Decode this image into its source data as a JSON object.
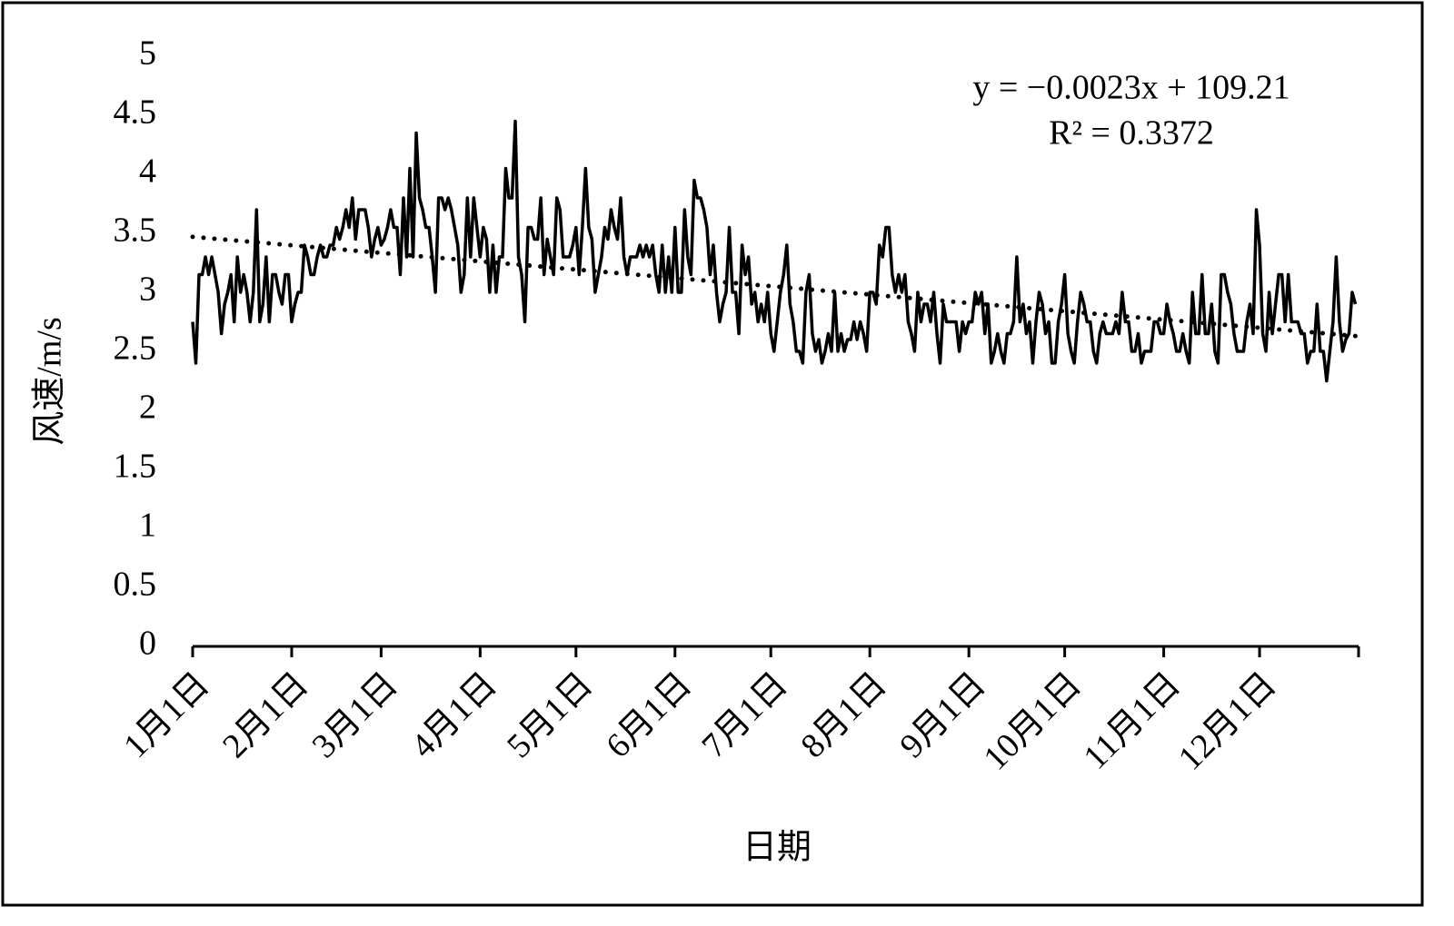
{
  "chart_data": {
    "type": "line",
    "x_label": "日期",
    "y_label": "风速/m/s",
    "annotations": [
      "y = −0.0023x + 109.21",
      "R² = 0.3372"
    ],
    "categories": [
      "1月1日",
      null,
      null,
      null,
      null,
      null,
      null,
      null,
      null,
      null,
      null,
      null,
      null,
      null,
      null,
      null,
      null,
      null,
      null,
      null,
      null,
      null,
      null,
      null,
      null,
      null,
      null,
      null,
      null,
      null,
      null,
      "2月1日",
      null,
      null,
      null,
      null,
      null,
      null,
      null,
      null,
      null,
      null,
      null,
      null,
      null,
      null,
      null,
      null,
      null,
      null,
      null,
      null,
      null,
      null,
      null,
      null,
      null,
      null,
      null,
      "3月1日",
      null,
      null,
      null,
      null,
      null,
      null,
      null,
      null,
      null,
      null,
      null,
      null,
      null,
      null,
      null,
      null,
      null,
      null,
      null,
      null,
      null,
      null,
      null,
      null,
      null,
      null,
      null,
      null,
      null,
      null,
      "4月1日",
      null,
      null,
      null,
      null,
      null,
      null,
      null,
      null,
      null,
      null,
      null,
      null,
      null,
      null,
      null,
      null,
      null,
      null,
      null,
      null,
      null,
      null,
      null,
      null,
      null,
      null,
      null,
      null,
      null,
      "5月1日",
      null,
      null,
      null,
      null,
      null,
      null,
      null,
      null,
      null,
      null,
      null,
      null,
      null,
      null,
      null,
      null,
      null,
      null,
      null,
      null,
      null,
      null,
      null,
      null,
      null,
      null,
      null,
      null,
      null,
      null,
      "6月1日",
      null,
      null,
      null,
      null,
      null,
      null,
      null,
      null,
      null,
      null,
      null,
      null,
      null,
      null,
      null,
      null,
      null,
      null,
      null,
      null,
      null,
      null,
      null,
      null,
      null,
      null,
      null,
      null,
      null,
      "7月1日",
      null,
      null,
      null,
      null,
      null,
      null,
      null,
      null,
      null,
      null,
      null,
      null,
      null,
      null,
      null,
      null,
      null,
      null,
      null,
      null,
      null,
      null,
      null,
      null,
      null,
      null,
      null,
      null,
      null,
      null,
      "8月1日",
      null,
      null,
      null,
      null,
      null,
      null,
      null,
      null,
      null,
      null,
      null,
      null,
      null,
      null,
      null,
      null,
      null,
      null,
      null,
      null,
      null,
      null,
      null,
      null,
      null,
      null,
      null,
      null,
      null,
      null,
      "9月1日",
      null,
      null,
      null,
      null,
      null,
      null,
      null,
      null,
      null,
      null,
      null,
      null,
      null,
      null,
      null,
      null,
      null,
      null,
      null,
      null,
      null,
      null,
      null,
      null,
      null,
      null,
      null,
      null,
      null,
      "10月1日",
      null,
      null,
      null,
      null,
      null,
      null,
      null,
      null,
      null,
      null,
      null,
      null,
      null,
      null,
      null,
      null,
      null,
      null,
      null,
      null,
      null,
      null,
      null,
      null,
      null,
      null,
      null,
      null,
      null,
      null,
      "11月1日",
      null,
      null,
      null,
      null,
      null,
      null,
      null,
      null,
      null,
      null,
      null,
      null,
      null,
      null,
      null,
      null,
      null,
      null,
      null,
      null,
      null,
      null,
      null,
      null,
      null,
      null,
      null,
      null,
      null,
      "12月1日",
      null,
      null,
      null,
      null,
      null,
      null,
      null,
      null,
      null,
      null,
      null,
      null,
      null,
      null,
      null,
      null,
      null,
      null,
      null,
      null,
      null,
      null,
      null,
      null,
      null,
      null,
      null,
      null,
      null,
      null
    ],
    "series": [
      {
        "color": "#000000",
        "values": [
          2.75,
          2.4,
          3.15,
          3.15,
          3.3,
          3.15,
          3.3,
          3.15,
          3.0,
          2.65,
          2.9,
          3.0,
          3.15,
          2.75,
          3.3,
          3.0,
          3.15,
          3.0,
          2.75,
          3.0,
          3.7,
          2.75,
          2.9,
          3.3,
          2.75,
          3.15,
          3.15,
          3.0,
          2.9,
          3.15,
          3.15,
          2.75,
          2.9,
          3.0,
          3.0,
          3.4,
          3.3,
          3.15,
          3.15,
          3.3,
          3.4,
          3.3,
          3.3,
          3.4,
          3.4,
          3.55,
          3.45,
          3.55,
          3.7,
          3.55,
          3.8,
          3.45,
          3.7,
          3.7,
          3.7,
          3.55,
          3.3,
          3.45,
          3.55,
          3.4,
          3.45,
          3.55,
          3.7,
          3.55,
          3.55,
          3.15,
          3.8,
          3.3,
          4.05,
          3.3,
          4.35,
          3.8,
          3.7,
          3.55,
          3.55,
          3.3,
          3.0,
          3.8,
          3.8,
          3.7,
          3.8,
          3.7,
          3.55,
          3.4,
          3.0,
          3.15,
          3.8,
          3.3,
          3.8,
          3.55,
          3.3,
          3.55,
          3.45,
          3.0,
          3.4,
          3.0,
          3.3,
          3.3,
          4.05,
          3.8,
          3.8,
          4.45,
          3.3,
          3.15,
          2.75,
          3.55,
          3.55,
          3.45,
          3.45,
          3.8,
          3.15,
          3.45,
          3.3,
          3.15,
          3.8,
          3.7,
          3.3,
          3.3,
          3.3,
          3.4,
          3.55,
          3.15,
          3.55,
          4.05,
          3.55,
          3.45,
          3.0,
          3.15,
          3.3,
          3.55,
          3.45,
          3.7,
          3.55,
          3.45,
          3.8,
          3.3,
          3.15,
          3.3,
          3.3,
          3.3,
          3.4,
          3.3,
          3.4,
          3.3,
          3.4,
          3.15,
          3.0,
          3.4,
          3.0,
          3.3,
          3.0,
          3.55,
          3.0,
          3.0,
          3.7,
          3.3,
          3.15,
          3.95,
          3.8,
          3.8,
          3.7,
          3.55,
          3.15,
          3.4,
          3.0,
          2.75,
          2.9,
          3.0,
          3.55,
          3.0,
          3.0,
          2.65,
          3.4,
          3.15,
          3.3,
          2.9,
          3.0,
          2.75,
          2.9,
          2.75,
          3.0,
          2.65,
          2.5,
          2.75,
          3.0,
          3.15,
          3.4,
          2.9,
          2.75,
          2.5,
          2.5,
          2.4,
          3.0,
          3.15,
          2.65,
          2.5,
          2.6,
          2.4,
          2.5,
          2.65,
          2.5,
          3.0,
          2.5,
          2.65,
          2.5,
          2.6,
          2.6,
          2.75,
          2.6,
          2.75,
          2.65,
          2.5,
          3.0,
          3.0,
          2.9,
          3.4,
          3.3,
          3.55,
          3.55,
          3.15,
          3.0,
          3.15,
          3.0,
          3.15,
          2.75,
          2.65,
          2.5,
          3.0,
          2.75,
          2.9,
          2.9,
          2.75,
          3.0,
          2.65,
          2.4,
          2.9,
          2.75,
          2.75,
          2.75,
          2.75,
          2.5,
          2.75,
          2.65,
          2.75,
          2.75,
          3.0,
          2.9,
          3.0,
          2.65,
          2.9,
          2.4,
          2.5,
          2.65,
          2.5,
          2.4,
          2.65,
          2.65,
          2.75,
          3.3,
          2.75,
          2.9,
          2.65,
          2.75,
          2.4,
          2.75,
          3.0,
          2.9,
          2.65,
          2.75,
          2.4,
          2.4,
          2.75,
          2.9,
          3.15,
          2.65,
          2.5,
          2.4,
          2.75,
          3.0,
          2.9,
          2.75,
          2.75,
          2.5,
          2.4,
          2.65,
          2.75,
          2.65,
          2.65,
          2.65,
          2.75,
          2.65,
          3.0,
          2.75,
          2.75,
          2.5,
          2.5,
          2.65,
          2.4,
          2.5,
          2.5,
          2.5,
          2.75,
          2.75,
          2.65,
          2.65,
          2.9,
          2.75,
          2.65,
          2.5,
          2.5,
          2.65,
          2.5,
          2.4,
          3.0,
          2.65,
          2.65,
          3.15,
          2.65,
          2.65,
          2.9,
          2.5,
          2.4,
          3.15,
          3.15,
          3.0,
          2.9,
          2.65,
          2.5,
          2.5,
          2.5,
          2.75,
          2.9,
          2.65,
          3.7,
          3.4,
          2.65,
          2.5,
          3.0,
          2.65,
          2.9,
          3.15,
          3.15,
          2.75,
          3.15,
          2.75,
          2.75,
          2.75,
          2.65,
          2.65,
          2.4,
          2.5,
          2.5,
          2.9,
          2.5,
          2.5,
          2.25,
          2.5,
          2.75,
          3.3,
          2.75,
          2.5,
          2.6,
          2.65,
          3.0,
          2.9
        ]
      }
    ],
    "trendline": {
      "color": "#000000",
      "style": "dotted",
      "values": [
        3.47,
        2.63
      ]
    },
    "ylim": [
      0,
      5
    ],
    "yticks": [
      0,
      0.5,
      1,
      1.5,
      2,
      2.5,
      3,
      3.5,
      4,
      4.5,
      5
    ],
    "grid": false
  }
}
